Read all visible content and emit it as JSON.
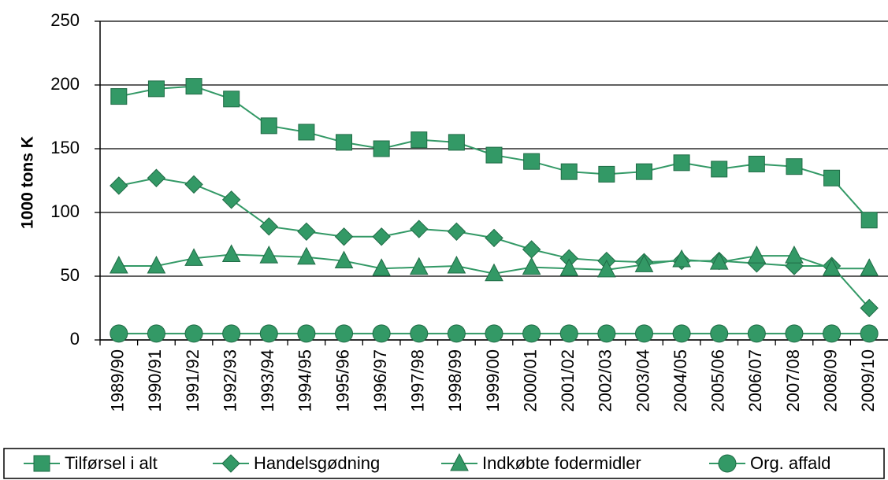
{
  "chart_data": {
    "type": "line",
    "y_label": "1000 tons K",
    "categories": [
      "1989/90",
      "1990/91",
      "1991/92",
      "1992/93",
      "1993/94",
      "1994/95",
      "1995/96",
      "1996/97",
      "1997/98",
      "1998/99",
      "1999/00",
      "2000/01",
      "2001/02",
      "2002/03",
      "2003/04",
      "2004/05",
      "2005/06",
      "2006/07",
      "2007/08",
      "2008/09",
      "2009/10"
    ],
    "series": [
      {
        "name": "Tilførsel i alt",
        "color": "#339966",
        "marker": "square",
        "values": [
          191,
          197,
          199,
          189,
          168,
          163,
          155,
          150,
          157,
          155,
          145,
          140,
          132,
          130,
          132,
          139,
          134,
          138,
          136,
          127,
          94
        ]
      },
      {
        "name": "Handelsgødning",
        "color": "#339966",
        "marker": "diamond",
        "values": [
          121,
          127,
          122,
          110,
          89,
          85,
          81,
          81,
          87,
          85,
          80,
          71,
          64,
          62,
          61,
          62,
          62,
          60,
          58,
          58,
          25
        ]
      },
      {
        "name": "Indkøbte fodermidler",
        "color": "#339966",
        "marker": "triangle",
        "values": [
          58,
          58,
          64,
          67,
          66,
          65,
          62,
          56,
          57,
          58,
          52,
          57,
          56,
          55,
          59,
          63,
          61,
          66,
          66,
          56,
          56
        ]
      },
      {
        "name": "Org. affald",
        "color": "#339966",
        "marker": "circle",
        "values": [
          5,
          5,
          5,
          5,
          5,
          5,
          5,
          5,
          5,
          5,
          5,
          5,
          5,
          5,
          5,
          5,
          5,
          5,
          5,
          5,
          5
        ]
      }
    ],
    "ylim": [
      0,
      250
    ],
    "yticks": [
      0,
      50,
      100,
      150,
      200,
      250
    ],
    "grid": true,
    "legend": "bottom"
  }
}
